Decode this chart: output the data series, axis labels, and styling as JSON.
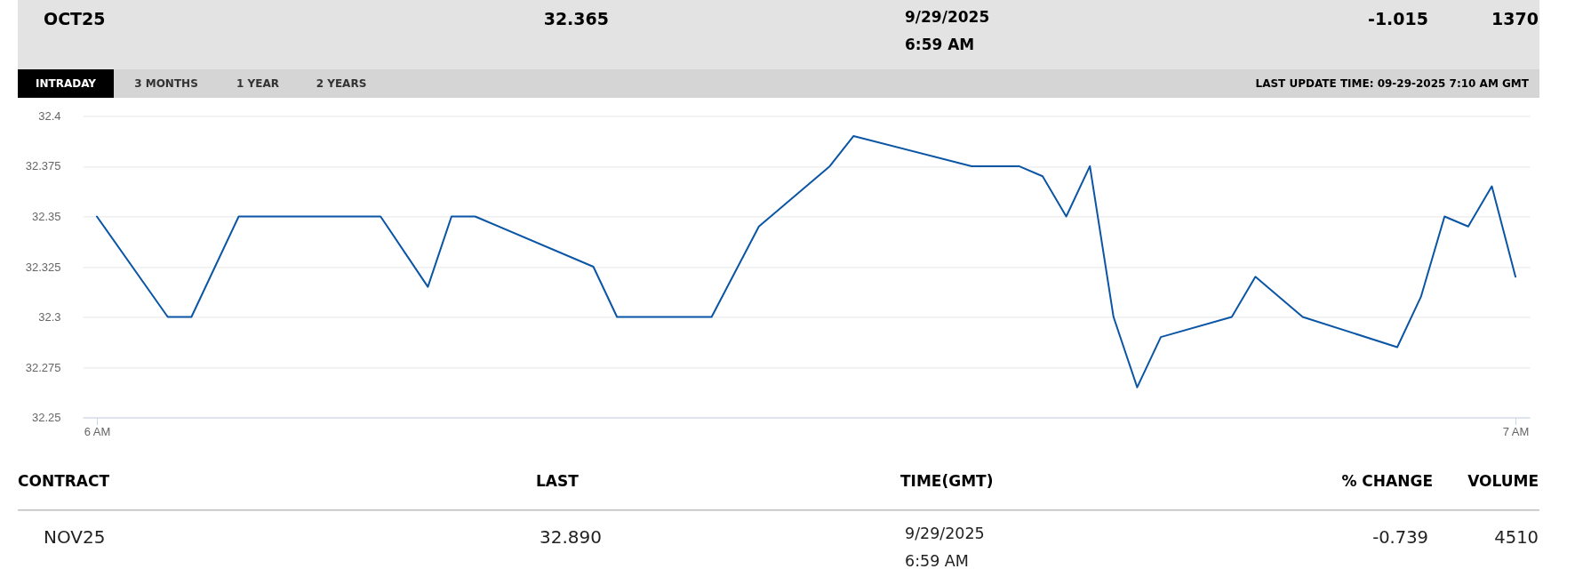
{
  "chart_data": {
    "type": "line",
    "x": [
      "2025-09-29T06:00",
      "2025-09-29T06:03",
      "2025-09-29T06:04",
      "2025-09-29T06:06",
      "2025-09-29T06:12",
      "2025-09-29T06:14",
      "2025-09-29T06:15",
      "2025-09-29T06:16",
      "2025-09-29T06:21",
      "2025-09-29T06:22",
      "2025-09-29T06:26",
      "2025-09-29T06:28",
      "2025-09-29T06:31",
      "2025-09-29T06:32",
      "2025-09-29T06:37",
      "2025-09-29T06:39",
      "2025-09-29T06:40",
      "2025-09-29T06:41",
      "2025-09-29T06:42",
      "2025-09-29T06:43",
      "2025-09-29T06:44",
      "2025-09-29T06:45",
      "2025-09-29T06:48",
      "2025-09-29T06:49",
      "2025-09-29T06:51",
      "2025-09-29T06:55",
      "2025-09-29T06:56",
      "2025-09-29T06:57",
      "2025-09-29T06:58",
      "2025-09-29T06:59",
      "2025-09-29T07:00"
    ],
    "series": [
      {
        "color": "#0b55a5",
        "values": [
          32.35,
          32.3,
          32.3,
          32.35,
          32.35,
          32.315,
          32.35,
          32.35,
          32.325,
          32.3,
          32.3,
          32.345,
          32.375,
          32.39,
          32.375,
          32.375,
          32.37,
          32.35,
          32.375,
          32.3,
          32.265,
          32.29,
          32.3,
          32.32,
          32.3,
          32.285,
          32.31,
          32.35,
          32.345,
          32.365,
          32.32
        ]
      }
    ],
    "xlim": [
      "2025-09-29T05:59:24",
      "2025-09-29T07:00:36"
    ],
    "xticks": [
      {
        "value": "2025-09-29T06:00",
        "label": "6 AM"
      },
      {
        "value": "2025-09-29T07:00",
        "label": "7 AM"
      }
    ],
    "ylim": [
      32.25,
      32.4
    ],
    "yticks": [
      32.25,
      32.275,
      32.3,
      32.325,
      32.35,
      32.375,
      32.4
    ],
    "grid": "y",
    "annotations": [
      "OCT25",
      "32.365",
      "9/29/2025",
      "6:59 AM",
      "-1.015",
      "1370",
      "INTRADAY",
      "3 MONTHS",
      "1 YEAR",
      "2 YEARS",
      "LAST UPDATE TIME: 09-29-2025 7:10 AM GMT",
      "CONTRACT",
      "LAST",
      "TIME(GMT)",
      "% CHANGE",
      "VOLUME",
      "NOV25",
      "32.890",
      "9/29/2025",
      "6:59 AM",
      "-0.739",
      "4510"
    ]
  }
}
